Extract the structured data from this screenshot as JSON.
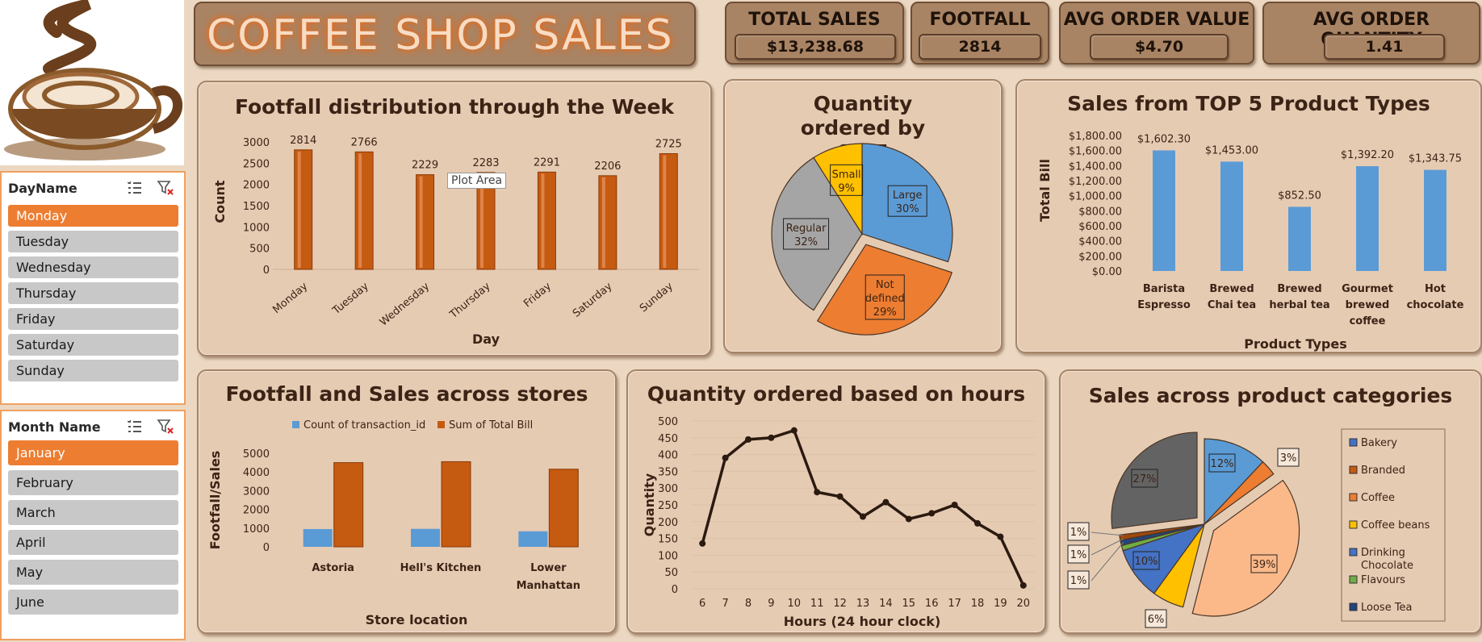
{
  "dashboard": {
    "title": "COFFEE SHOP SALES"
  },
  "kpis": [
    {
      "label": "TOTAL SALES",
      "value": "$13,238.68"
    },
    {
      "label": "FOOTFALL",
      "value": "2814"
    },
    {
      "label": "AVG ORDER VALUE",
      "value": "$4.70"
    },
    {
      "label": "AVG ORDER QUANTITY",
      "value": "1.41"
    }
  ],
  "slicers": {
    "day": {
      "header": "DayName",
      "items": [
        "Monday",
        "Tuesday",
        "Wednesday",
        "Thursday",
        "Friday",
        "Saturday",
        "Sunday"
      ],
      "selected": "Monday"
    },
    "month": {
      "header": "Month Name",
      "items": [
        "January",
        "February",
        "March",
        "April",
        "May",
        "June"
      ],
      "selected": "January"
    }
  },
  "tooltip": {
    "text": "Plot Area"
  },
  "colors": {
    "background": "#ecd8c2",
    "panel": "#e6cbb3",
    "bar_orange": "#c55a11",
    "bar_blue": "#5b9bd5",
    "line": "#2b1a10",
    "accent": "#ed7d31"
  },
  "chart_data": [
    {
      "type": "bar",
      "title": "Footfall distribution through the Week",
      "xlabel": "Day",
      "ylabel": "Count",
      "categories": [
        "Monday",
        "Tuesday",
        "Wednesday",
        "Thursday",
        "Friday",
        "Saturday",
        "Sunday"
      ],
      "values": [
        2814,
        2766,
        2229,
        2283,
        2291,
        2206,
        2725
      ],
      "yticks": [
        "0",
        "500",
        "1000",
        "1500",
        "2000",
        "2500",
        "3000"
      ],
      "ylim": [
        0,
        3000
      ]
    },
    {
      "type": "pie",
      "title": "Quantity ordered by SIZE",
      "slices": [
        {
          "label": "Large",
          "pct": "30%",
          "value": 30,
          "color": "#5b9bd5"
        },
        {
          "label": "Not defined",
          "pct": "29%",
          "value": 29,
          "color": "#ed7d31"
        },
        {
          "label": "Regular",
          "pct": "32%",
          "value": 32,
          "color": "#a5a5a5"
        },
        {
          "label": "Small",
          "pct": "9%",
          "value": 9,
          "color": "#ffc000"
        }
      ]
    },
    {
      "type": "bar",
      "title": "Sales from TOP 5 Product Types",
      "xlabel": "Product Types",
      "ylabel": "Total Bill",
      "categories": [
        "Barista Espresso",
        "Brewed Chai tea",
        "Brewed herbal tea",
        "Gourmet brewed coffee",
        "Hot chocolate"
      ],
      "values": [
        1602.3,
        1453.0,
        852.5,
        1392.2,
        1343.75
      ],
      "value_labels": [
        "$1,602.30",
        "$1,453.00",
        "$852.50",
        "$1,392.20",
        "$1,343.75"
      ],
      "yticks": [
        "$0.00",
        "$200.00",
        "$400.00",
        "$600.00",
        "$800.00",
        "$1,000.00",
        "$1,200.00",
        "$1,400.00",
        "$1,600.00",
        "$1,800.00"
      ],
      "ylim": [
        0,
        1800
      ]
    },
    {
      "type": "bar",
      "title": "Footfall and Sales across stores",
      "xlabel": "Store location",
      "ylabel": "Footfall/Sales",
      "categories": [
        "Astoria",
        "Hell's Kitchen",
        "Lower Manhattan"
      ],
      "series": [
        {
          "name": "Count of transaction_id",
          "values": [
            950,
            960,
            830
          ]
        },
        {
          "name": "Sum of Total Bill",
          "values": [
            4500,
            4550,
            4150
          ]
        }
      ],
      "yticks": [
        "0",
        "1000",
        "2000",
        "3000",
        "4000",
        "5000"
      ],
      "ylim": [
        0,
        5000
      ]
    },
    {
      "type": "line",
      "title": "Quantity ordered based on hours",
      "xlabel": "Hours (24 hour clock)",
      "ylabel": "Quantity",
      "x": [
        6,
        7,
        8,
        9,
        10,
        11,
        12,
        13,
        14,
        15,
        16,
        17,
        18,
        19,
        20
      ],
      "y": [
        135,
        390,
        445,
        450,
        472,
        288,
        275,
        215,
        258,
        208,
        225,
        250,
        195,
        155,
        10
      ],
      "yticks": [
        "0",
        "50",
        "100",
        "150",
        "200",
        "250",
        "300",
        "350",
        "400",
        "450",
        "500"
      ],
      "ylim": [
        0,
        500
      ]
    },
    {
      "type": "pie",
      "title": "Sales across product categories",
      "legend": [
        "Bakery",
        "Branded",
        "Coffee",
        "Coffee beans",
        "Drinking Chocolate",
        "Flavours",
        "Loose Tea"
      ],
      "slices": [
        {
          "label": "12%",
          "value": 12,
          "color": "#5b9bd5"
        },
        {
          "label": "3%",
          "value": 3,
          "color": "#ed7d31"
        },
        {
          "label": "39%",
          "value": 39,
          "color": "#fbb98a"
        },
        {
          "label": "6%",
          "value": 6,
          "color": "#ffc000"
        },
        {
          "label": "10%",
          "value": 10,
          "color": "#4472c4"
        },
        {
          "label": "1%",
          "value": 1,
          "color": "#70ad47"
        },
        {
          "label": "1%",
          "value": 1,
          "color": "#264478"
        },
        {
          "label": "1%",
          "value": 1,
          "color": "#9e480e"
        },
        {
          "label": "27%",
          "value": 27,
          "color": "#636363"
        }
      ]
    }
  ]
}
